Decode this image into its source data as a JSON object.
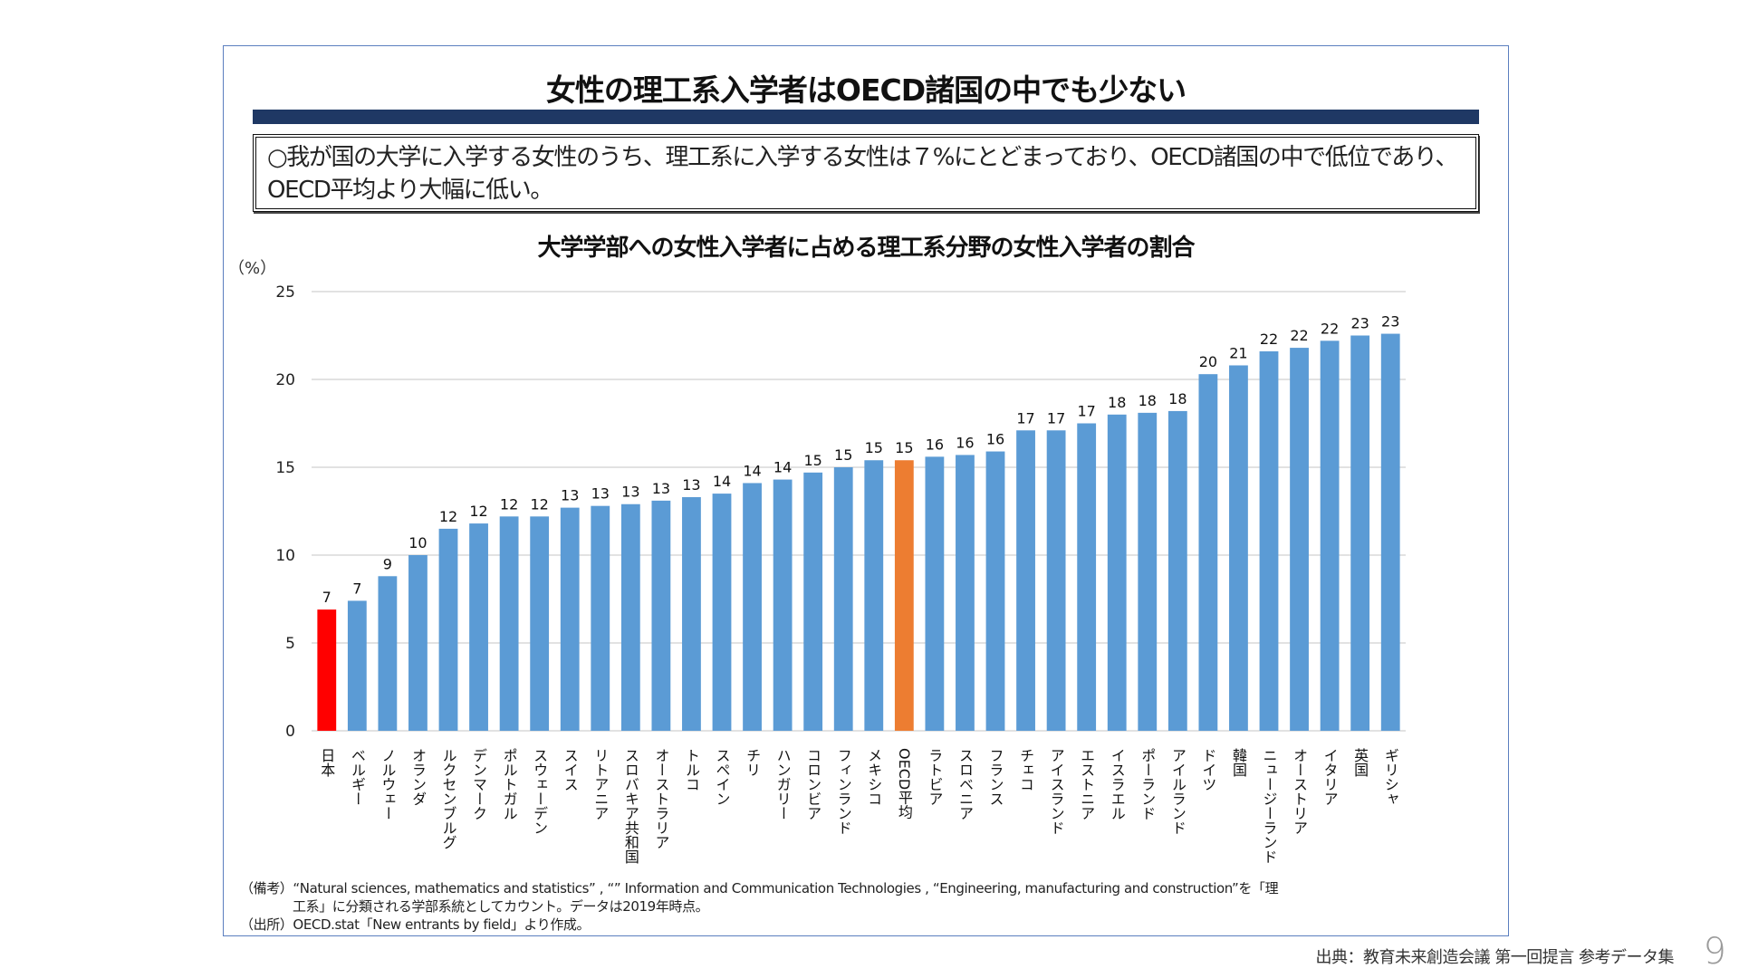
{
  "slide": {
    "title": "女性の理工系入学者はOECD諸国の中でも少ない",
    "summary": "○我が国の大学に入学する女性のうち、理工系に入学する女性は７%にとどまっており、OECD諸国の中で低位であり、OECD平均より大幅に低い。",
    "notes": {
      "remarks_label": "（備考）",
      "remarks_line1": "“Natural sciences, mathematics and statistics” , “” Information and Communication Technologies , “Engineering, manufacturing and construction”を「理",
      "remarks_line2": "工系」に分類される学部系統としてカウント。データは2019年時点。",
      "source_label": "（出所）",
      "source_text": "OECD.stat「New entrants by field」より作成。"
    },
    "footer_source": "出典：教育未来創造会議 第一回提言 参考データ集",
    "page_number": "9"
  },
  "colors": {
    "bar_default": "#5b9bd5",
    "bar_japan": "#ff0000",
    "bar_oecd": "#ed7d31",
    "title_bar": "#1f3864",
    "gridline": "#d9d9d9"
  },
  "chart_data": {
    "type": "bar",
    "title": "大学学部への女性入学者に占める理工系分野の女性入学者の割合",
    "ylabel": "（%）",
    "xlabel": "",
    "ylim": [
      0,
      25
    ],
    "yticks": [
      0,
      5,
      10,
      15,
      20,
      25
    ],
    "grid": true,
    "legend": "none",
    "categories": [
      "日本",
      "ベルギー",
      "ノルウェー",
      "オランダ",
      "ルクセンブルグ",
      "デンマーク",
      "ポルトガル",
      "スウェーデン",
      "スイス",
      "リトアニア",
      "スロバキア共和国",
      "オーストラリア",
      "トルコ",
      "スペイン",
      "チリ",
      "ハンガリー",
      "コロンビア",
      "フィンランド",
      "メキシコ",
      "OECD平均",
      "ラトビア",
      "スロベニア",
      "フランス",
      "チェコ",
      "アイスランド",
      "エストニア",
      "イスラエル",
      "ポーランド",
      "アイルランド",
      "ドイツ",
      "韓国",
      "ニュージーランド",
      "オーストリア",
      "イタリア",
      "英国",
      "ギリシャ"
    ],
    "values": [
      6.9,
      7.4,
      8.8,
      10.0,
      11.5,
      11.8,
      12.2,
      12.2,
      12.7,
      12.8,
      12.9,
      13.1,
      13.3,
      13.5,
      14.1,
      14.3,
      14.7,
      15.0,
      15.4,
      15.4,
      15.6,
      15.7,
      15.9,
      17.1,
      17.1,
      17.5,
      18.0,
      18.1,
      18.2,
      20.3,
      20.8,
      21.6,
      21.8,
      22.2,
      22.5,
      22.6
    ],
    "data_labels": [
      "7",
      "7",
      "9",
      "10",
      "12",
      "12",
      "12",
      "12",
      "13",
      "13",
      "13",
      "13",
      "13",
      "14",
      "14",
      "14",
      "15",
      "15",
      "15",
      "15",
      "16",
      "16",
      "16",
      "17",
      "17",
      "17",
      "18",
      "18",
      "18",
      "20",
      "21",
      "22",
      "22",
      "22",
      "23",
      "23"
    ],
    "highlight": {
      "日本": "japan",
      "OECD平均": "oecd"
    }
  }
}
